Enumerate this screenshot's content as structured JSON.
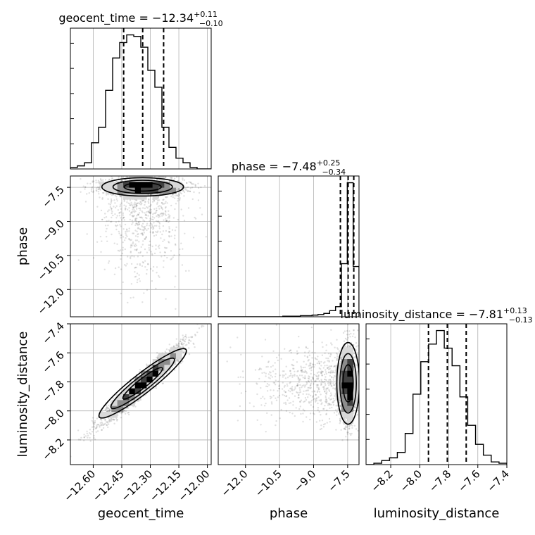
{
  "chart_data": {
    "type": "corner",
    "parameters": [
      "geocent_time",
      "phase",
      "luminosity_distance"
    ],
    "titles": [
      {
        "param": "geocent_time",
        "prefix": "geocent_time = ",
        "value": "−12.34",
        "plus": "+0.11",
        "minus": "−0.10"
      },
      {
        "param": "phase",
        "prefix": "phase = ",
        "value": "−7.48",
        "plus": "+0.25",
        "minus": "−0.34"
      },
      {
        "param": "luminosity_distance",
        "prefix": "luminosity_distance = ",
        "value": "−7.81",
        "plus": "+0.13",
        "minus": "−0.13"
      }
    ],
    "axes": {
      "geocent_time": {
        "range": [
          -12.72,
          -11.98
        ],
        "ticks": [
          -12.6,
          -12.45,
          -12.3,
          -12.15,
          -12.0
        ],
        "tick_labels": [
          "−12.60",
          "−12.45",
          "−12.30",
          "−12.15",
          "−12.00"
        ]
      },
      "phase": {
        "range": [
          -13.2,
          -7.0
        ],
        "ticks": [
          -12.0,
          -10.5,
          -9.0,
          -7.5
        ],
        "tick_labels": [
          "−12.0",
          "−10.5",
          "−9.0",
          "−7.5"
        ]
      },
      "luminosity_distance": {
        "range": [
          -8.37,
          -7.4
        ],
        "ticks": [
          -8.2,
          -8.0,
          -7.8,
          -7.6,
          -7.4
        ],
        "tick_labels": [
          "−8.2",
          "−8.0",
          "−7.8",
          "−7.6",
          "−7.4"
        ]
      }
    },
    "quantiles": {
      "geocent_time": [
        -12.44,
        -12.34,
        -12.23
      ],
      "phase": [
        -7.82,
        -7.48,
        -7.23
      ],
      "luminosity_distance": [
        -7.94,
        -7.81,
        -7.68
      ]
    },
    "histograms": {
      "geocent_time": {
        "edges_range": [
          -12.72,
          -11.98
        ],
        "counts": [
          1,
          2,
          4,
          17,
          27,
          51,
          72,
          82,
          87,
          86,
          79,
          64,
          53,
          27,
          14,
          7,
          4,
          1,
          0,
          0
        ]
      },
      "phase": {
        "edges_range": [
          -13.2,
          -7.0
        ],
        "counts": [
          0,
          0,
          0,
          0,
          0,
          0,
          0,
          0,
          0,
          0,
          0,
          1,
          1,
          1,
          2,
          2,
          3,
          4,
          6,
          11,
          18,
          95,
          240,
          90
        ]
      },
      "luminosity_distance": {
        "edges_range": [
          -8.37,
          -7.4
        ],
        "counts": [
          0,
          1,
          3,
          5,
          9,
          23,
          52,
          76,
          89,
          99,
          86,
          73,
          50,
          29,
          15,
          7,
          2,
          1
        ]
      }
    },
    "correlations": {
      "phase_vs_geocent_time": 0.05,
      "luminosity_distance_vs_geocent_time": 0.96,
      "luminosity_distance_vs_phase": 0.0
    },
    "grid": true
  }
}
